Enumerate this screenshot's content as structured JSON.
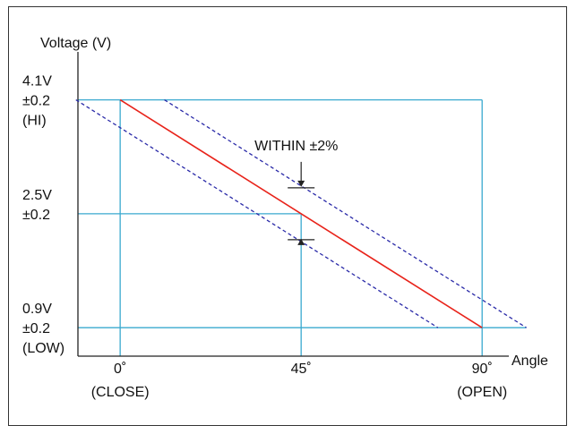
{
  "chart_data": {
    "type": "line",
    "title": "",
    "ylabel": "Voltage (V)",
    "xlabel": "Angle",
    "x_ticks": [
      {
        "value": 0,
        "label": "0˚",
        "sublabel": "(CLOSE)"
      },
      {
        "value": 45,
        "label": "45˚",
        "sublabel": ""
      },
      {
        "value": 90,
        "label": "90˚",
        "sublabel": "(OPEN)"
      }
    ],
    "y_ticks": [
      {
        "value": 4.1,
        "lines": [
          "4.1V",
          "±0.2",
          "(HI)"
        ]
      },
      {
        "value": 2.5,
        "lines": [
          "2.5V",
          "±0.2"
        ]
      },
      {
        "value": 0.9,
        "lines": [
          "0.9V",
          "±0.2",
          "(LOW)"
        ]
      }
    ],
    "xlim": [
      -10.5,
      110
    ],
    "ylim": [
      0.5,
      5.0
    ],
    "series": [
      {
        "style": "solid",
        "color": "#e8231a",
        "x": [
          0,
          90
        ],
        "y": [
          4.1,
          0.9
        ]
      },
      {
        "style": "dashed",
        "color": "#2a2aa8",
        "x": [
          11,
          101
        ],
        "y": [
          4.1,
          0.9
        ]
      },
      {
        "style": "dashed",
        "color": "#2a2aa8",
        "x": [
          -11,
          79
        ],
        "y": [
          4.1,
          0.9
        ]
      }
    ],
    "annotation": {
      "text": "WITHIN  ±2%",
      "x": 45,
      "y": 2.5
    },
    "guide_color": "#39a9cf"
  }
}
